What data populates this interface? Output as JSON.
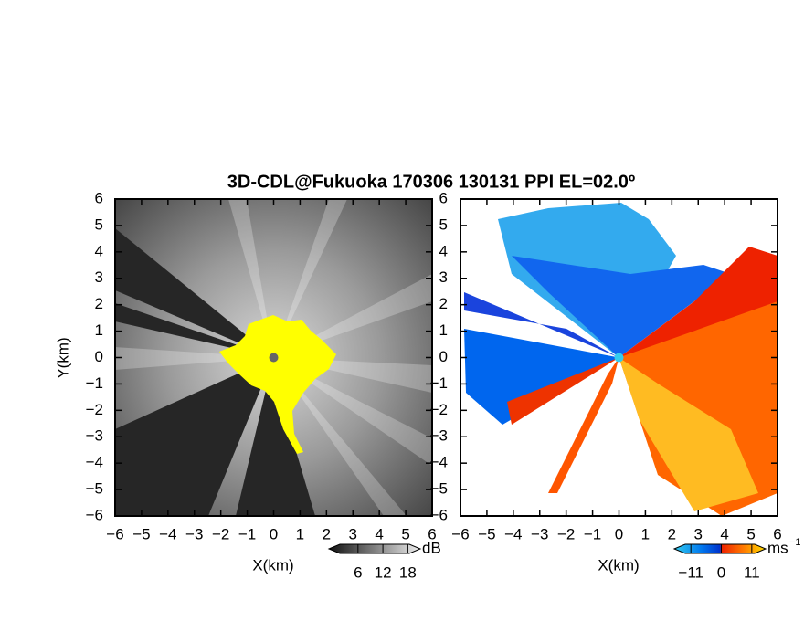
{
  "title": "3D-CDL@Fukuoka 170306 130131 PPI EL=02.0º",
  "chart_data": [
    {
      "type": "ppi",
      "xlabel": "X(km)",
      "ylabel": "Y(km)",
      "xlim": [
        -6,
        6
      ],
      "ylim": [
        -6,
        6
      ],
      "xticks": [
        {
          "value": -6,
          "label": "−6"
        },
        {
          "value": -5,
          "label": "−5"
        },
        {
          "value": -4,
          "label": "−4"
        },
        {
          "value": -3,
          "label": "−3"
        },
        {
          "value": -2,
          "label": "−2"
        },
        {
          "value": -1,
          "label": "−1"
        },
        0,
        1,
        2,
        3,
        4,
        5,
        6
      ],
      "yticks": [
        {
          "value": -6,
          "label": "−6"
        },
        {
          "value": -5,
          "label": "−5"
        },
        {
          "value": -4,
          "label": "−4"
        },
        {
          "value": -3,
          "label": "−3"
        },
        {
          "value": -2,
          "label": "−2"
        },
        {
          "value": -1,
          "label": "−1"
        },
        0,
        1,
        2,
        3,
        4,
        5,
        6
      ],
      "colorbar": {
        "unit": "dB",
        "lim": [
          -1,
          21
        ],
        "ticks": [
          6,
          12,
          18
        ]
      }
    },
    {
      "type": "ppi",
      "xlabel": "X(km)",
      "xlim": [
        -6,
        6
      ],
      "ylim": [
        -6,
        6
      ],
      "xticks": [
        {
          "value": -6,
          "label": "−6"
        },
        {
          "value": -5,
          "label": "−5"
        },
        {
          "value": -4,
          "label": "−4"
        },
        {
          "value": -3,
          "label": "−3"
        },
        {
          "value": -2,
          "label": "−2"
        },
        {
          "value": -1,
          "label": "−1"
        },
        0,
        1,
        2,
        3,
        4,
        5,
        6
      ],
      "yticks": [
        {
          "value": -6,
          "label": "−6"
        },
        {
          "value": -5,
          "label": "−5"
        },
        {
          "value": -4,
          "label": "−4"
        },
        {
          "value": -3,
          "label": "−3"
        },
        {
          "value": -2,
          "label": "−2"
        },
        {
          "value": -1,
          "label": "−1"
        },
        0,
        1,
        2,
        3,
        4,
        5,
        6
      ],
      "colorbar": {
        "unit": "ms",
        "unit_exponent": "−1",
        "lim": [
          -17,
          16
        ],
        "ticks": [
          {
            "value": -11,
            "label": "−11"
          },
          0,
          11
        ]
      }
    }
  ]
}
